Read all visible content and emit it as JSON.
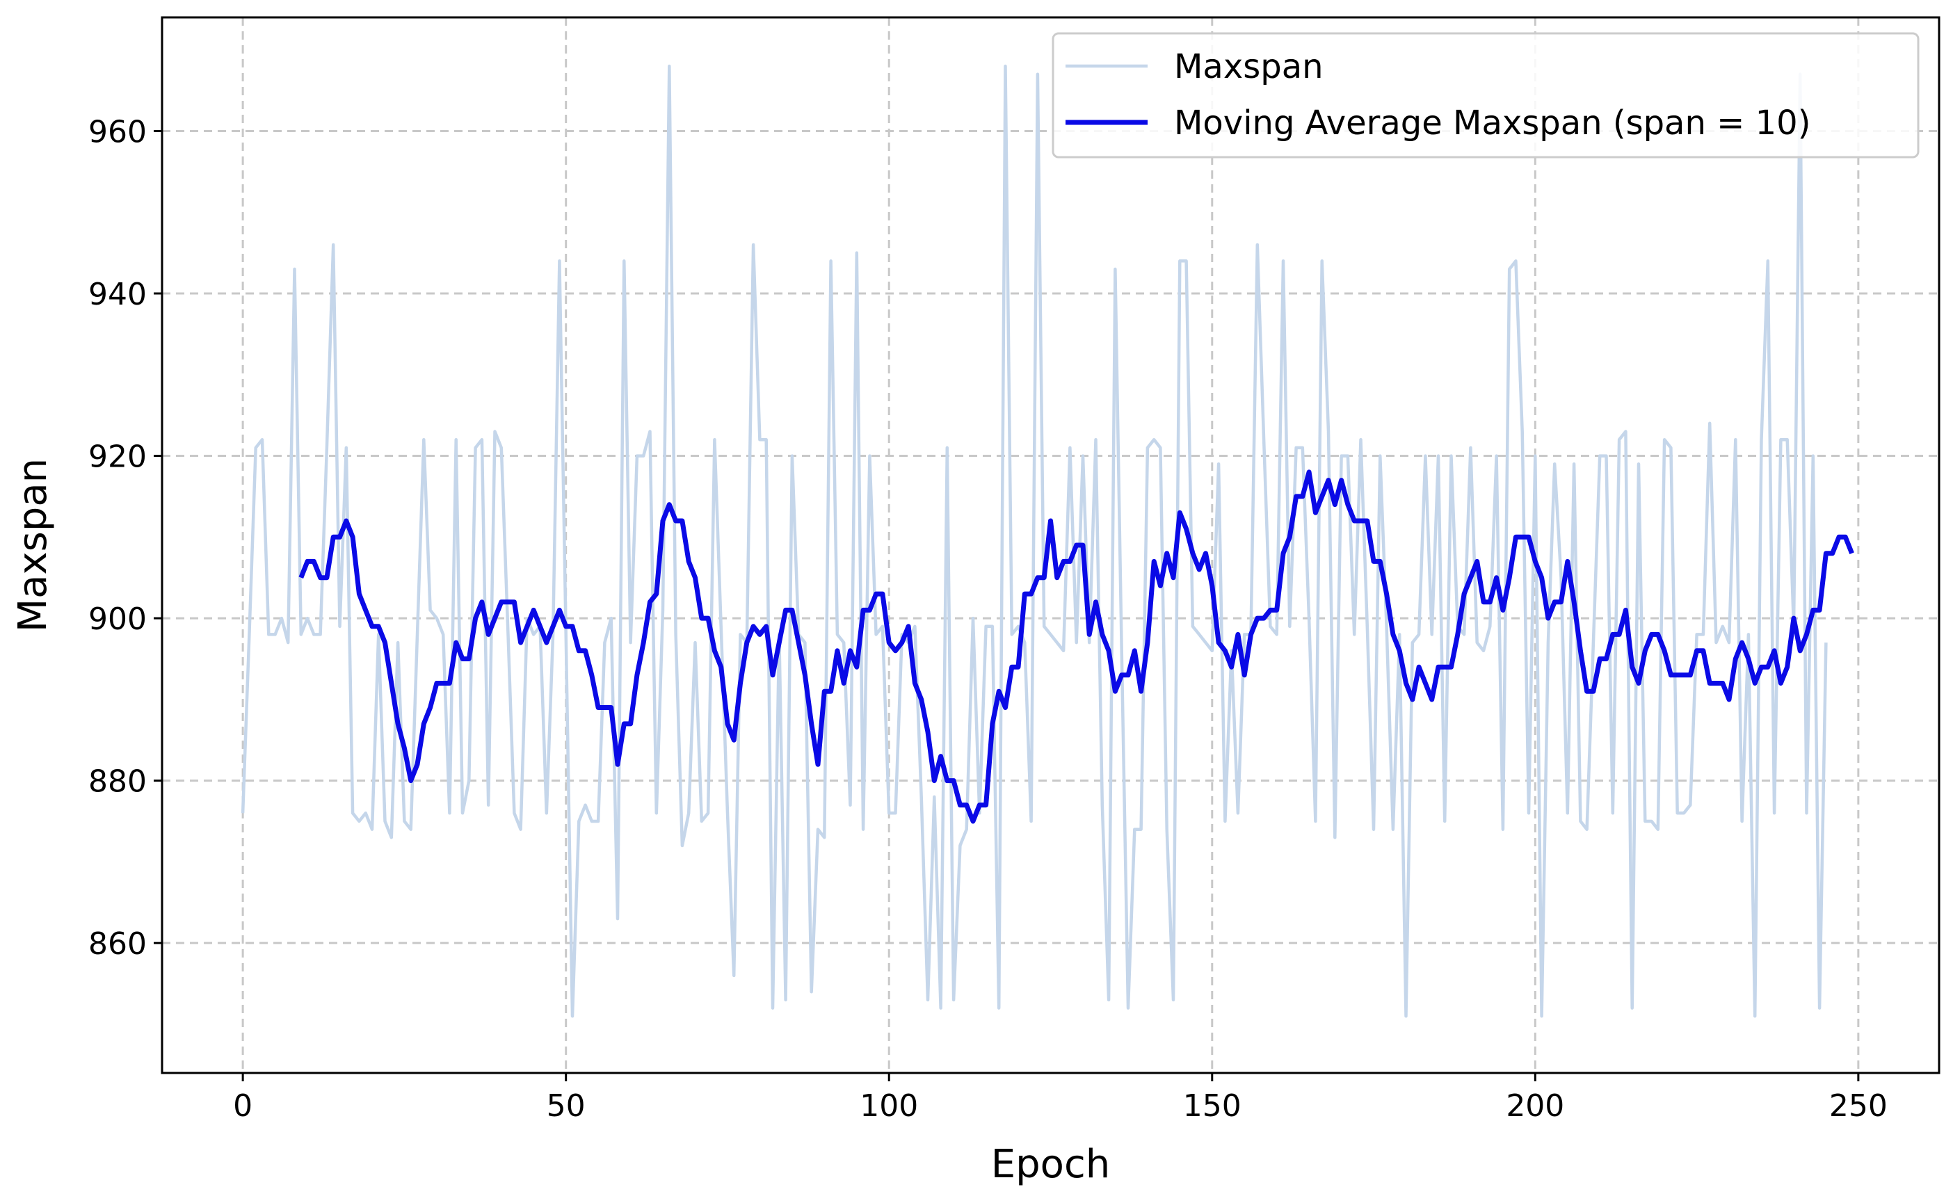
{
  "chart_data": {
    "type": "line",
    "xlabel": "Epoch",
    "ylabel": "Maxspan",
    "xlim": [
      -12.5,
      262.5
    ],
    "ylim": [
      844,
      974
    ],
    "xticks": [
      0,
      50,
      100,
      150,
      200,
      250
    ],
    "yticks": [
      860,
      880,
      900,
      920,
      940,
      960
    ],
    "grid": true,
    "legend_position": "top-right",
    "series": [
      {
        "name": "Maxspan",
        "color": "#c5d6ea",
        "x_start": 0,
        "values": [
          876,
          898,
          921,
          922,
          898,
          898,
          900,
          897,
          943,
          898,
          900,
          898,
          898,
          921,
          946,
          899,
          921,
          876,
          875,
          876,
          874,
          898,
          875,
          873,
          897,
          875,
          874,
          898,
          922,
          901,
          900,
          898,
          876,
          922,
          876,
          880,
          921,
          922,
          877,
          923,
          921,
          899,
          876,
          874,
          900,
          898,
          899,
          876,
          898,
          944,
          898,
          851,
          875,
          877,
          875,
          875,
          897,
          900,
          863,
          944,
          897,
          920,
          920,
          923,
          876,
          901,
          968,
          898,
          872,
          876,
          897,
          875,
          876,
          922,
          899,
          876,
          856,
          898,
          897,
          946,
          922,
          922,
          852,
          898,
          853,
          920,
          898,
          897,
          854,
          874,
          873,
          944,
          898,
          897,
          877,
          945,
          874,
          920,
          898,
          899,
          876,
          876,
          898,
          897,
          899,
          878,
          853,
          878,
          852,
          921,
          853,
          872,
          874,
          900,
          876,
          899,
          899,
          852,
          968,
          898,
          899,
          897,
          875,
          967,
          899,
          898,
          897,
          896,
          921,
          897,
          920,
          897,
          922,
          877,
          853,
          943,
          896,
          852,
          874,
          874,
          921,
          922,
          921,
          874,
          853,
          944,
          944,
          899,
          898,
          897,
          896,
          919,
          875,
          896,
          876,
          898,
          898,
          946,
          922,
          899,
          898,
          944,
          899,
          921,
          921,
          900,
          875,
          944,
          923,
          873,
          920,
          920,
          898,
          922,
          899,
          874,
          920,
          899,
          874,
          898,
          851,
          897,
          898,
          920,
          898,
          920,
          875,
          920,
          899,
          898,
          921,
          897,
          896,
          899,
          920,
          874,
          943,
          944,
          923,
          876,
          920,
          851,
          897,
          919,
          905,
          876,
          919,
          875,
          874,
          897,
          920,
          920,
          876,
          922,
          923,
          852,
          919,
          875,
          875,
          874,
          922,
          921,
          876,
          876,
          877,
          898,
          898,
          924,
          897,
          899,
          897,
          922,
          875,
          898,
          851,
          922,
          944,
          876,
          922,
          922,
          899,
          967,
          876,
          920,
          852,
          897
        ]
      },
      {
        "name": "Moving Average Maxspan (span = 10)",
        "color": "#0a0ae6",
        "x_start": 9,
        "values": [
          905,
          907,
          907,
          905,
          905,
          910,
          910,
          912,
          910,
          903,
          901,
          899,
          899,
          897,
          892,
          887,
          884,
          880,
          882,
          887,
          889,
          892,
          892,
          892,
          897,
          895,
          895,
          900,
          902,
          898,
          900,
          902,
          902,
          902,
          897,
          899,
          901,
          899,
          897,
          899,
          901,
          899,
          899,
          896,
          896,
          893,
          889,
          889,
          889,
          882,
          887,
          887,
          893,
          897,
          902,
          903,
          912,
          914,
          912,
          912,
          907,
          905,
          900,
          900,
          896,
          894,
          887,
          885,
          892,
          897,
          899,
          898,
          899,
          893,
          897,
          901,
          901,
          897,
          893,
          887,
          882,
          891,
          891,
          896,
          892,
          896,
          894,
          901,
          901,
          903,
          903,
          897,
          896,
          897,
          899,
          892,
          890,
          886,
          880,
          883,
          880,
          880,
          877,
          877,
          875,
          877,
          877,
          887,
          891,
          889,
          894,
          894,
          903,
          903,
          905,
          905,
          912,
          905,
          907,
          907,
          909,
          909,
          898,
          902,
          898,
          896,
          891,
          893,
          893,
          896,
          891,
          897,
          907,
          904,
          908,
          905,
          913,
          911,
          908,
          906,
          908,
          904,
          897,
          896,
          894,
          898,
          893,
          898,
          900,
          900,
          901,
          901,
          908,
          910,
          915,
          915,
          918,
          913,
          915,
          917,
          914,
          917,
          914,
          912,
          912,
          912,
          907,
          907,
          903,
          898,
          896,
          892,
          890,
          894,
          892,
          890,
          894,
          894,
          894,
          898,
          903,
          905,
          907,
          902,
          902,
          905,
          901,
          905,
          910,
          910,
          910,
          907,
          905,
          900,
          902,
          902,
          907,
          902,
          896,
          891,
          891,
          895,
          895,
          898,
          898,
          901,
          894,
          892,
          896,
          898,
          898,
          896,
          893,
          893,
          893,
          893,
          896,
          896,
          892,
          892,
          892,
          890,
          895,
          897,
          895,
          892,
          894,
          894,
          896,
          892,
          894,
          900,
          896,
          898,
          901,
          901,
          908,
          908,
          910,
          910,
          908
        ]
      }
    ]
  }
}
